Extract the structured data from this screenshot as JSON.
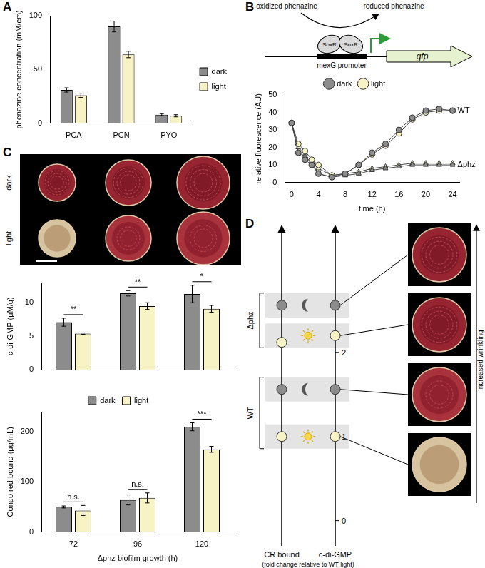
{
  "panel_labels": [
    "A",
    "B",
    "C",
    "D"
  ],
  "chart_data": [
    {
      "type": "bar",
      "categories": [
        "PCA",
        "PCN",
        "PYO"
      ],
      "y_label": "phenazine concentration (mM/cm)",
      "ylim": [
        0,
        100
      ],
      "yticks": [
        0,
        50,
        100
      ],
      "legend": "right",
      "series": [
        {
          "name": "dark",
          "color": "#8c8c8c",
          "values": [
            31,
            90,
            8
          ],
          "errors": [
            2,
            5,
            1
          ]
        },
        {
          "name": "light",
          "color": "#f8f3c4",
          "values": [
            26,
            64,
            7
          ],
          "errors": [
            2,
            3,
            1
          ]
        }
      ]
    },
    {
      "type": "line",
      "x_label": "time (h)",
      "y_label": "relative fluorescence (AU)",
      "x": [
        0,
        1,
        2,
        3,
        4,
        6,
        8,
        10,
        12,
        14,
        16,
        18,
        20,
        22,
        24
      ],
      "xlim": [
        -1,
        25
      ],
      "xticks": [
        0,
        4,
        8,
        12,
        16,
        20,
        24
      ],
      "ylim": [
        0,
        50
      ],
      "yticks": [
        0,
        10,
        20,
        30,
        40,
        50
      ],
      "legend": "top",
      "series": [
        {
          "name": "dark",
          "color": "#8c8c8c",
          "marker": "circle",
          "values": [
            34,
            17,
            13,
            10,
            5,
            3,
            5,
            10,
            17,
            22,
            30,
            37,
            41,
            42,
            41
          ]
        },
        {
          "name": "light",
          "color": "#f8f3c4",
          "marker": "circle",
          "values": [
            34,
            22,
            18,
            13,
            10,
            4,
            5,
            10,
            16,
            21,
            28,
            36,
            40,
            41,
            41
          ]
        },
        {
          "name": "dark",
          "color": "#8c8c8c",
          "marker": "triangle",
          "values": [
            34,
            17,
            15,
            11,
            5,
            3,
            4,
            5,
            7,
            8,
            9,
            10,
            10,
            10,
            10
          ]
        },
        {
          "name": "light",
          "color": "#f8f3c4",
          "marker": "triangle",
          "values": [
            34,
            20,
            16,
            12,
            8,
            4,
            5,
            6,
            8,
            9,
            10,
            11,
            11,
            11,
            11
          ]
        }
      ],
      "annotations": [
        {
          "text": "WT",
          "series": 0
        },
        {
          "text": "Δphz",
          "series": 2
        }
      ]
    },
    {
      "type": "bar",
      "categories": [
        "72",
        "96",
        "120"
      ],
      "y_label": "c-di-GMP (μM/g)",
      "ylim": [
        0,
        13
      ],
      "yticks": [
        0,
        5,
        10
      ],
      "tick_labels": "y",
      "significance": [
        "**",
        "**",
        "*"
      ],
      "series": [
        {
          "name": "dark",
          "color": "#8c8c8c",
          "values": [
            7.1,
            11.4,
            11.3
          ],
          "errors": [
            0.6,
            0.4,
            1.3
          ]
        },
        {
          "name": "light",
          "color": "#f8f3c4",
          "values": [
            5.4,
            9.5,
            9.1
          ],
          "errors": [
            0.1,
            0.5,
            0.5
          ]
        }
      ]
    },
    {
      "type": "bar",
      "categories": [
        "72",
        "96",
        "120"
      ],
      "x_label": "Δphz biofilm growth (h)",
      "y_label": "Congo red bound (μg/mL)",
      "ylim": [
        0,
        240
      ],
      "yticks": [
        0,
        100,
        200
      ],
      "legend": "top",
      "significance": [
        "n.s.",
        "n.s.",
        "***"
      ],
      "series": [
        {
          "name": "dark",
          "color": "#8c8c8c",
          "values": [
            50,
            64,
            210
          ],
          "errors": [
            2,
            10,
            8
          ]
        },
        {
          "name": "light",
          "color": "#f8f3c4",
          "values": [
            43,
            68,
            165
          ],
          "errors": [
            10,
            10,
            6
          ]
        }
      ]
    }
  ],
  "schematic_B": {
    "oxidized": "oxidized phenazine",
    "reduced": "reduced phenazine",
    "regulator": [
      "SoxR",
      "SoxR"
    ],
    "promoter": "mexG promoter",
    "gene": "gfp"
  },
  "images_C": {
    "rows": [
      "dark",
      "light"
    ]
  },
  "diagram_D": {
    "axes": [
      "CR bound",
      "c-di-GMP"
    ],
    "caption": "(fold change relative to WT light)",
    "ylim": [
      -0.3,
      3.5
    ],
    "ticks": [
      0,
      1,
      2
    ],
    "groups": [
      {
        "label": "Δphz",
        "rows": [
          {
            "condition": "dark",
            "cr_bound": 2.56,
            "c_di_gmp": 2.56
          },
          {
            "condition": "light",
            "cr_bound": 2.12,
            "c_di_gmp": 2.2
          }
        ]
      },
      {
        "label": "WT",
        "rows": [
          {
            "condition": "dark",
            "cr_bound": 1.56,
            "c_di_gmp": 1.56
          },
          {
            "condition": "light",
            "cr_bound": 1.0,
            "c_di_gmp": 1.0
          }
        ]
      }
    ],
    "arrow_label": "increased wrinkling"
  }
}
